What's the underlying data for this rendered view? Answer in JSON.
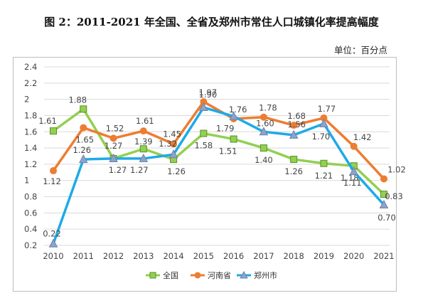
{
  "chart_data": {
    "type": "line",
    "title": "图 2：2011-2021 年全国、全省及郑州市常住人口城镇化率提高幅度",
    "unit_label": "单位：百分点",
    "categories": [
      "2010",
      "2011",
      "2012",
      "2013",
      "2014",
      "2015",
      "2016",
      "2017",
      "2018",
      "2019",
      "2020",
      "2021"
    ],
    "ylim": [
      0.2,
      2.4
    ],
    "yticks": [
      "0.2",
      "0.4",
      "0.6",
      "0.8",
      "1",
      "1.2",
      "1.4",
      "1.6",
      "1.8",
      "2",
      "2.2",
      "2.4"
    ],
    "grid": true,
    "legend_position": "bottom",
    "series": [
      {
        "name": "全国",
        "color": "#92d050",
        "marker": "square",
        "values": [
          1.61,
          1.88,
          1.27,
          1.39,
          1.26,
          1.58,
          1.51,
          1.4,
          1.26,
          1.21,
          1.18,
          0.83
        ],
        "labels": [
          "1.61",
          "1.88",
          "1.27",
          "1.39",
          "1.26",
          "1.58",
          "1.51",
          "1.40",
          "1.26",
          "1.21",
          "1.18",
          "0.83"
        ]
      },
      {
        "name": "河南省",
        "color": "#ed7d31",
        "marker": "circle",
        "values": [
          1.12,
          1.65,
          1.52,
          1.61,
          1.45,
          1.97,
          1.76,
          1.78,
          1.68,
          1.77,
          1.42,
          1.02
        ],
        "labels": [
          "1.12",
          "1.65",
          "1.52",
          "1.61",
          "1.45",
          "1.97",
          "1.76",
          "1.78",
          "1.68",
          "1.77",
          "1.42",
          "1.02"
        ]
      },
      {
        "name": "郑州市",
        "color": "#1eaae7",
        "marker": "triangle",
        "values": [
          0.22,
          1.26,
          1.27,
          1.27,
          1.32,
          1.9,
          1.79,
          1.6,
          1.56,
          1.7,
          1.11,
          0.7
        ],
        "labels": [
          "0.22",
          "1.26",
          "1.27",
          "1.27",
          "1.32",
          "1.90",
          "1.79",
          "1.60",
          "1.56",
          "1.70",
          "1.11",
          "0.70"
        ]
      }
    ]
  }
}
